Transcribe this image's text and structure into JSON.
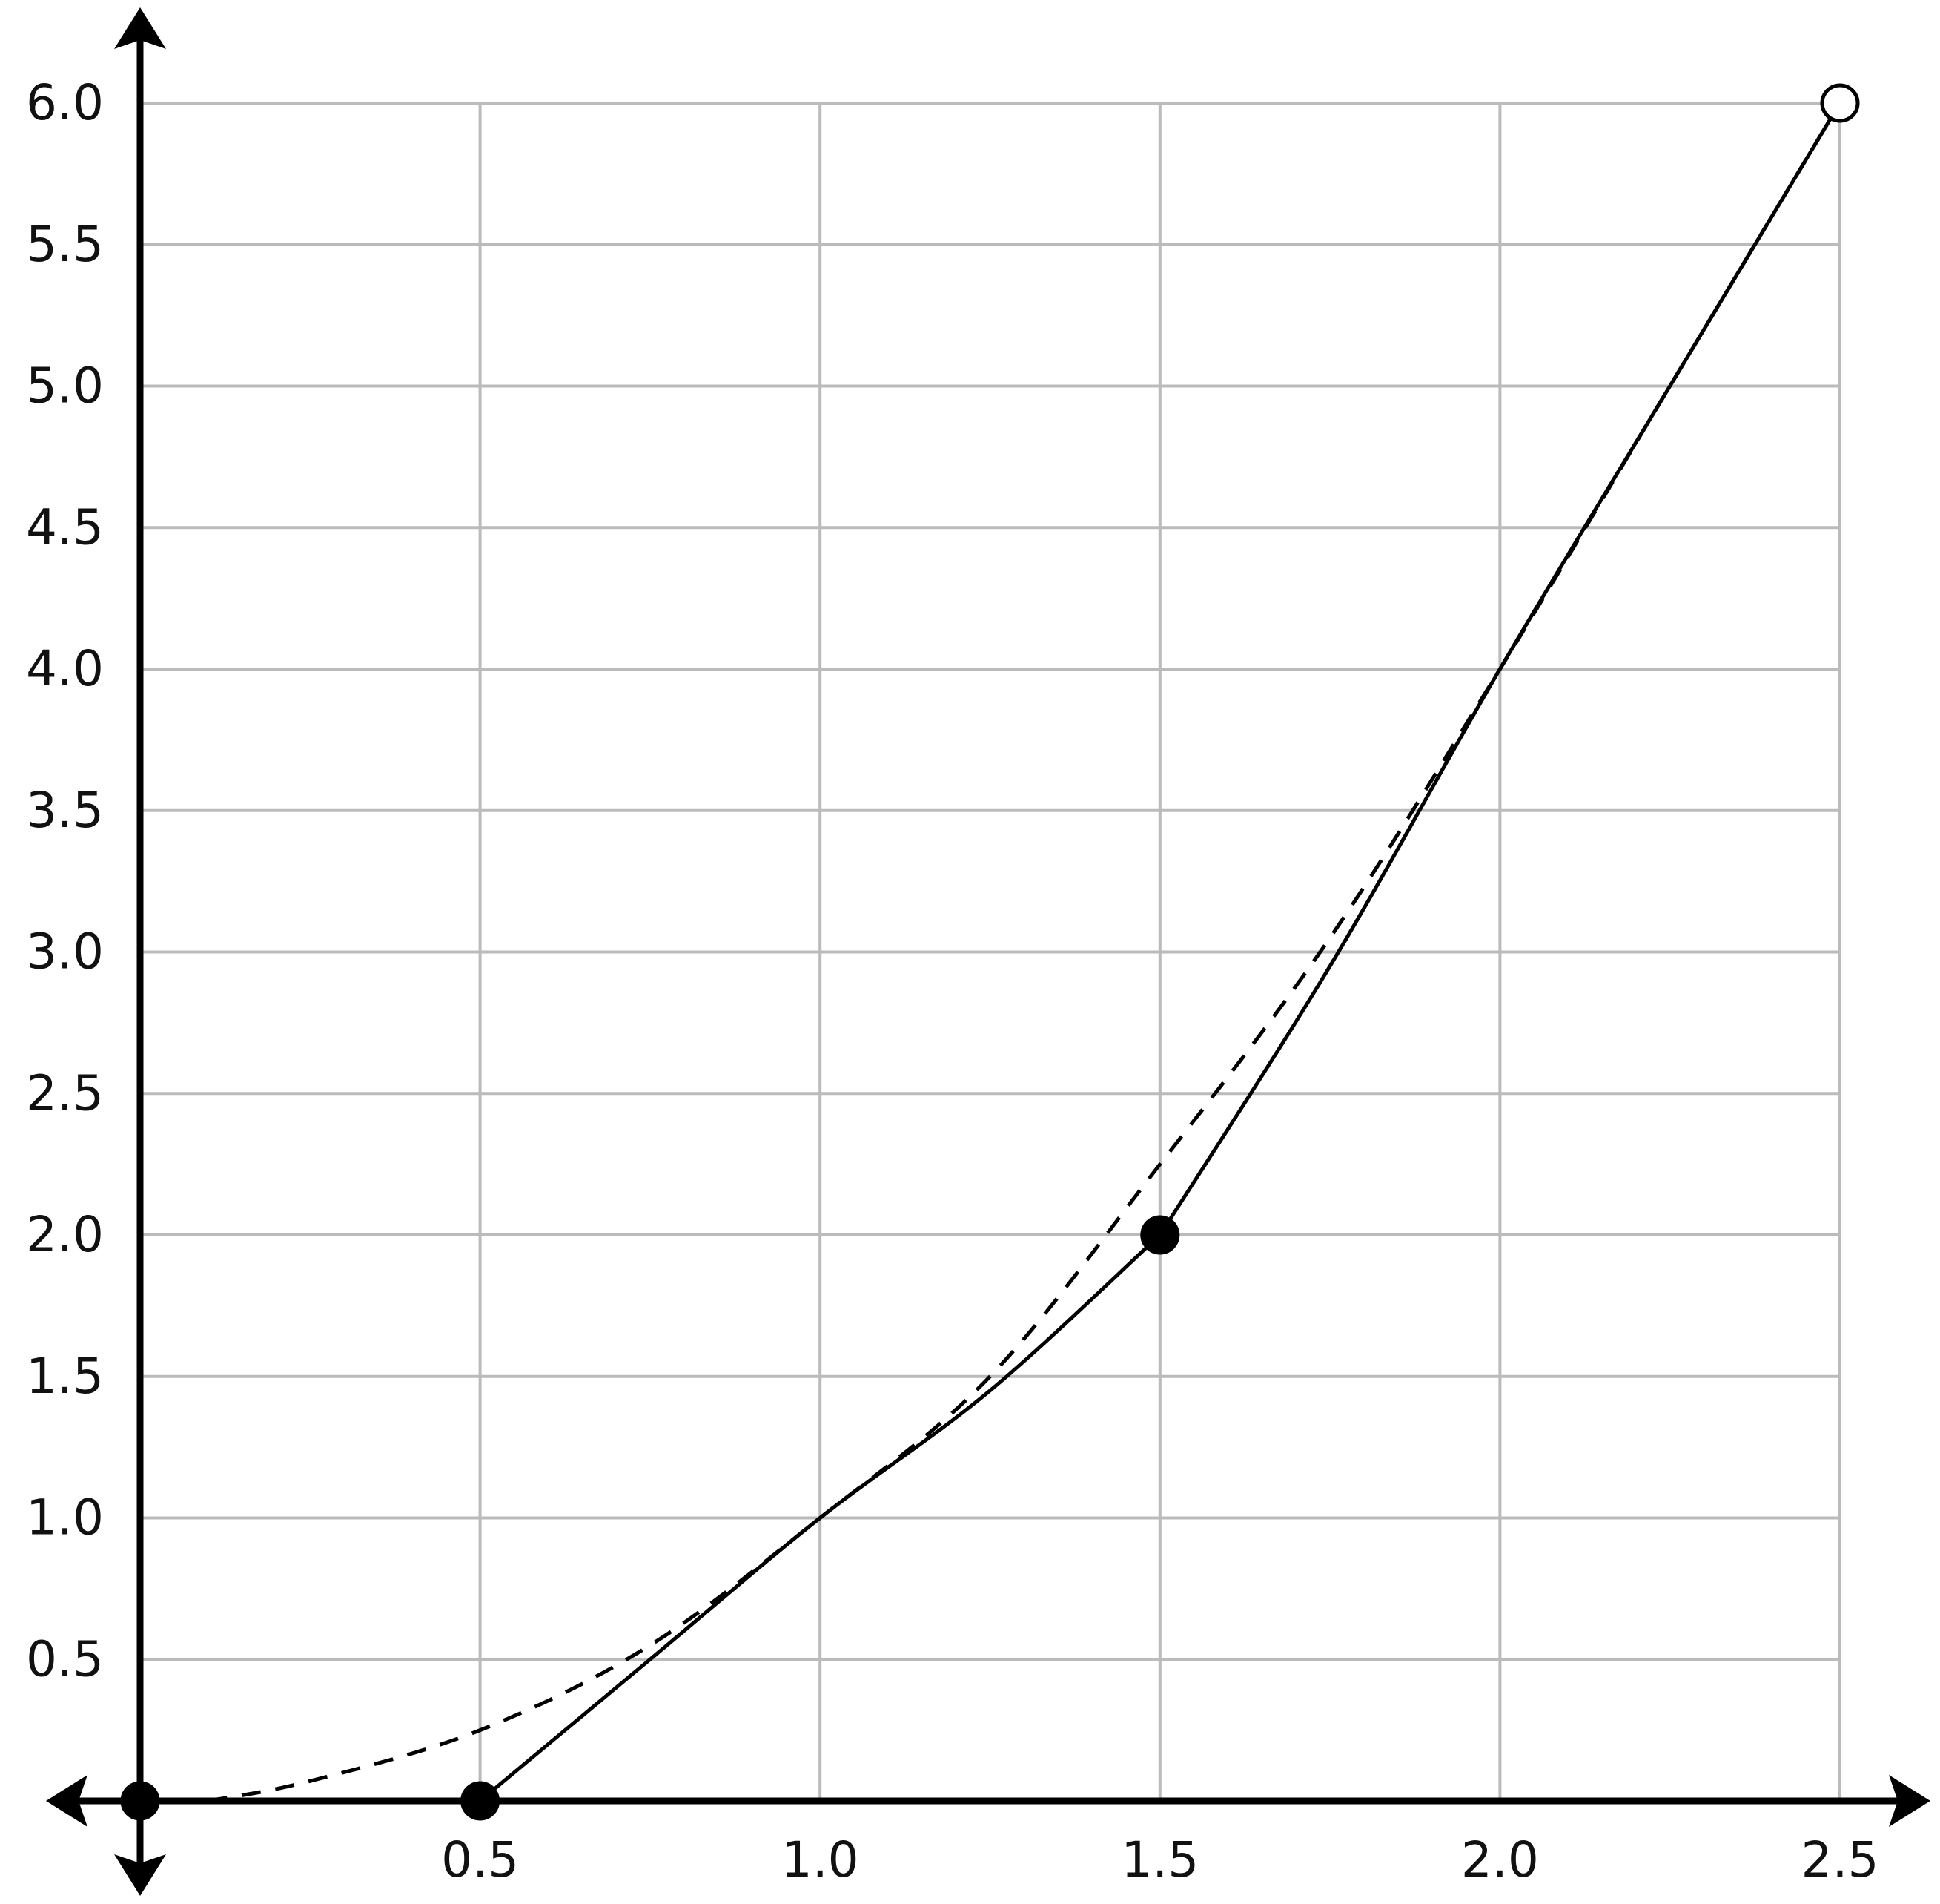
{
  "chart_data": {
    "type": "line",
    "xlim": [
      0,
      2.5
    ],
    "ylim": [
      0,
      6
    ],
    "xticks": [
      0.5,
      {
        "value": 1,
        "label": "1.0"
      },
      1.5,
      {
        "value": 2,
        "label": "2.0"
      },
      2.5
    ],
    "yticks": [
      0.5,
      {
        "value": 1,
        "label": "1.0"
      },
      1.5,
      {
        "value": 2,
        "label": "2.0"
      },
      2.5,
      {
        "value": 3,
        "label": "3.0"
      },
      3.5,
      {
        "value": 4,
        "label": "4.0"
      },
      4.5,
      {
        "value": 5,
        "label": "5.0"
      },
      5.5,
      {
        "value": 6,
        "label": "6.0"
      }
    ],
    "grid": true,
    "series": [
      {
        "color": "#000000",
        "dashed": true,
        "x": [
          0.1,
          0.25,
          0.5,
          0.75,
          1,
          1.25,
          1.5,
          1.75,
          2,
          2.25,
          2.5
        ],
        "values": [
          0,
          0.07,
          0.25,
          0.55,
          1,
          1.5,
          2.25,
          3.05,
          4,
          5.0,
          6
        ]
      },
      {
        "color": "#000000",
        "dashed": false,
        "x": [
          0.5,
          0.75,
          1,
          1.25,
          1.5
        ],
        "values": [
          0,
          0.5,
          1,
          1.45,
          2
        ]
      },
      {
        "color": "#000000",
        "dashed": false,
        "x": [
          1.5,
          1.75,
          2,
          2.25,
          2.5
        ],
        "values": [
          2,
          2.95,
          4,
          5,
          6
        ]
      }
    ],
    "points": {
      "x": [
        0,
        0.5,
        1.5,
        2.5
      ],
      "y": [
        0,
        0,
        2,
        6
      ],
      "filled": [
        true,
        true,
        true,
        false
      ]
    }
  }
}
